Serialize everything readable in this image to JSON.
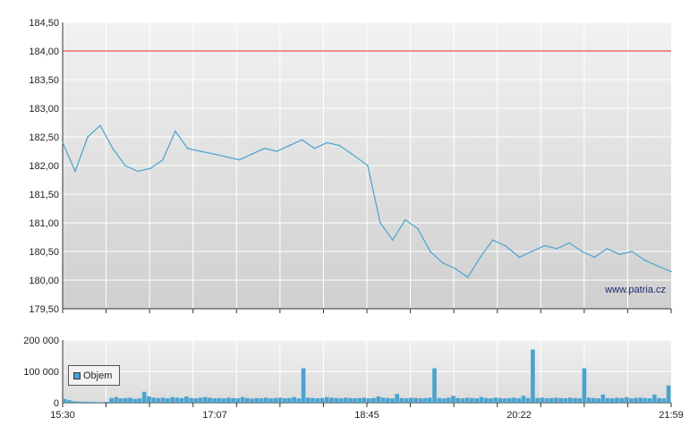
{
  "chart_data": [
    {
      "type": "line",
      "title": "",
      "ylim": [
        179.5,
        184.5
      ],
      "y_ticks": [
        "184,50",
        "184,00",
        "183,50",
        "183,00",
        "182,50",
        "182,00",
        "181,50",
        "181,00",
        "180,50",
        "180,00",
        "179,50"
      ],
      "reference_line": {
        "value": 184.0,
        "color": "#d9362b"
      },
      "watermark": "www.patria.cz",
      "line_color": "#4aa3cf",
      "grid": true,
      "series": [
        {
          "x": [
            "15:30",
            "15:38",
            "15:46",
            "15:54",
            "16:02",
            "16:10",
            "16:18",
            "16:26",
            "16:34",
            "16:42",
            "16:50",
            "16:58",
            "17:07",
            "17:15",
            "17:23",
            "17:31",
            "17:39",
            "17:47",
            "17:55",
            "18:03",
            "18:11",
            "18:19",
            "18:27",
            "18:35",
            "18:45",
            "18:53",
            "19:01",
            "19:09",
            "19:17",
            "19:25",
            "19:33",
            "19:41",
            "19:49",
            "19:57",
            "20:05",
            "20:13",
            "20:22",
            "20:30",
            "20:38",
            "20:46",
            "20:54",
            "21:02",
            "21:10",
            "21:18",
            "21:26",
            "21:34",
            "21:42",
            "21:50",
            "21:59"
          ],
          "values": [
            182.4,
            181.9,
            182.5,
            182.7,
            182.3,
            182.0,
            181.9,
            181.95,
            182.1,
            182.6,
            182.3,
            182.25,
            182.2,
            182.15,
            182.1,
            182.2,
            182.3,
            182.25,
            182.35,
            182.45,
            182.3,
            182.4,
            182.35,
            182.2,
            182.0,
            181.0,
            180.7,
            181.05,
            180.9,
            180.5,
            180.3,
            180.2,
            180.05,
            180.4,
            180.7,
            180.6,
            180.4,
            180.5,
            180.6,
            180.55,
            180.65,
            180.5,
            180.4,
            180.55,
            180.45,
            180.5,
            180.35,
            180.25,
            180.15
          ]
        }
      ]
    },
    {
      "type": "bar",
      "ylim": [
        0,
        200000
      ],
      "y_ticks": [
        "200 000",
        "100 000",
        "0"
      ],
      "x_ticks": [
        "15:30",
        "17:07",
        "18:45",
        "20:22",
        "21:59"
      ],
      "bar_color": "#4aa3cf",
      "grid": true,
      "series": [
        {
          "name": "Objem",
          "values": [
            12000,
            8000,
            5000,
            4000,
            3000,
            3000,
            2500,
            2000,
            2000,
            3000,
            15000,
            18000,
            14000,
            15000,
            16000,
            12000,
            14000,
            35000,
            20000,
            16000,
            15000,
            16000,
            14000,
            18000,
            16000,
            15000,
            20000,
            15000,
            14000,
            16000,
            18000,
            16000,
            14000,
            15000,
            14000,
            16000,
            15000,
            14000,
            18000,
            15000,
            13000,
            15000,
            14000,
            16000,
            14000,
            15000,
            16000,
            14000,
            15000,
            18000,
            14000,
            110000,
            16000,
            15000,
            14000,
            15000,
            18000,
            16000,
            15000,
            14000,
            16000,
            15000,
            14000,
            15000,
            16000,
            14000,
            15000,
            20000,
            16000,
            15000,
            14000,
            28000,
            15000,
            14000,
            16000,
            15000,
            14000,
            15000,
            16000,
            110000,
            15000,
            14000,
            16000,
            22000,
            15000,
            14000,
            16000,
            15000,
            14000,
            18000,
            15000,
            14000,
            16000,
            15000,
            14000,
            15000,
            16000,
            14000,
            22000,
            15000,
            170000,
            15000,
            16000,
            14000,
            15000,
            16000,
            15000,
            14000,
            16000,
            15000,
            14000,
            110000,
            16000,
            15000,
            14000,
            26000,
            15000,
            14000,
            16000,
            15000,
            18000,
            14000,
            15000,
            16000,
            15000,
            14000,
            26000,
            15000,
            14000,
            55000
          ]
        }
      ]
    }
  ]
}
